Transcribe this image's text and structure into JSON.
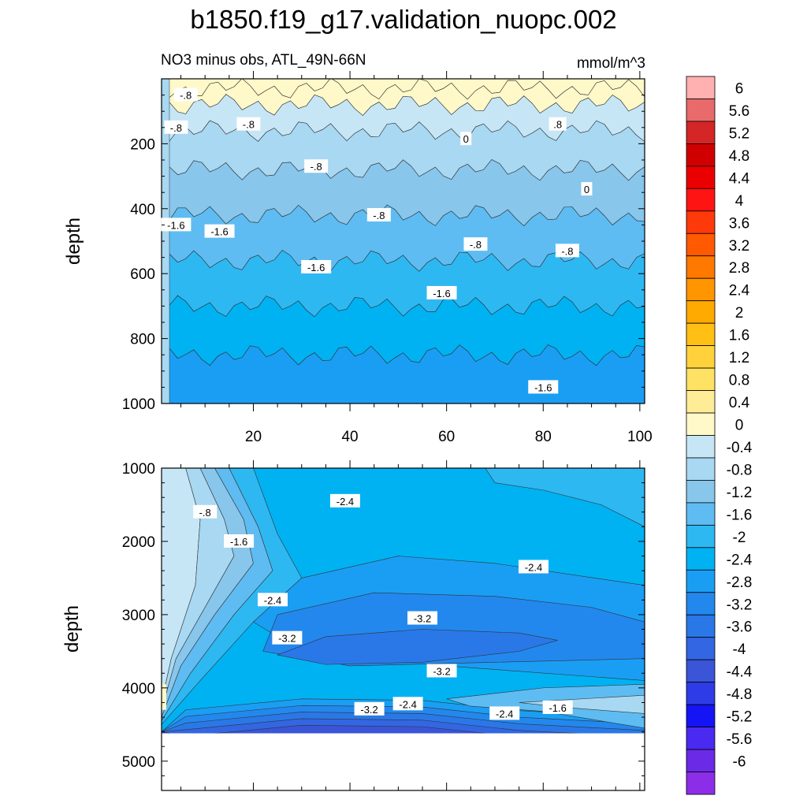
{
  "chart_data": [
    {
      "type": "heatmap",
      "title": "b1850.f19_g17.validation_nuopc.002",
      "subtitle_left": "NO3 minus obs, ATL_49N-66N",
      "units": "mmol/m^3",
      "ylabel": "depth",
      "xlim": [
        1,
        101
      ],
      "ylim": [
        0,
        1000
      ],
      "x_ticks": [
        20,
        40,
        60,
        80,
        100
      ],
      "y_ticks": [
        200,
        400,
        600,
        800,
        1000
      ],
      "bands": [
        {
          "depth": 30,
          "value": 0.4,
          "contour_label": ".8"
        },
        {
          "depth": 80,
          "value": 0.2,
          "contour_label": "0"
        },
        {
          "depth": 160,
          "value": -0.2,
          "contour_label": "-.8"
        },
        {
          "depth": 280,
          "value": -0.6,
          "contour_label": "-.8"
        },
        {
          "depth": 420,
          "value": -1.0,
          "contour_label": "-.8"
        },
        {
          "depth": 560,
          "value": -1.4,
          "contour_label": "-1.6"
        },
        {
          "depth": 700,
          "value": -1.8,
          "contour_label": "-1.6"
        },
        {
          "depth": 850,
          "value": -2.2,
          "contour_label": "-1.6"
        },
        {
          "depth": 1000,
          "value": -2.4,
          "contour_label": ""
        }
      ],
      "contour_labels": [
        {
          "text": "-.8",
          "x": 6,
          "depth": 50
        },
        {
          "text": "-.8",
          "x": 4,
          "depth": 150
        },
        {
          "text": "-.8",
          "x": 19,
          "depth": 140
        },
        {
          "text": ".8",
          "x": 83,
          "depth": 140
        },
        {
          "text": "0",
          "x": 64,
          "depth": 185
        },
        {
          "text": "-.8",
          "x": 33,
          "depth": 270
        },
        {
          "text": "0",
          "x": 89,
          "depth": 340
        },
        {
          "text": "-1.6",
          "x": 4,
          "depth": 450
        },
        {
          "text": "-1.6",
          "x": 13,
          "depth": 470
        },
        {
          "text": "-.8",
          "x": 46,
          "depth": 420
        },
        {
          "text": "-.8",
          "x": 66,
          "depth": 510
        },
        {
          "text": "-.8",
          "x": 85,
          "depth": 530
        },
        {
          "text": "-1.6",
          "x": 33,
          "depth": 580
        },
        {
          "text": "-1.6",
          "x": 59,
          "depth": 660
        },
        {
          "text": "-1.6",
          "x": 80,
          "depth": 950
        }
      ]
    },
    {
      "type": "heatmap",
      "ylabel": "depth",
      "xlim": [
        1,
        101
      ],
      "ylim": [
        1000,
        5400
      ],
      "y_ticks": [
        1000,
        2000,
        3000,
        4000,
        5000
      ],
      "data_bottom": 4620,
      "contour_labels": [
        {
          "text": "-.8",
          "x": 10,
          "depth": 1600
        },
        {
          "text": "-1.6",
          "x": 17,
          "depth": 2000
        },
        {
          "text": "-2.4",
          "x": 39,
          "depth": 1450
        },
        {
          "text": "-2.4",
          "x": 78,
          "depth": 2350
        },
        {
          "text": "-2.4",
          "x": 24,
          "depth": 2800
        },
        {
          "text": "-3.2",
          "x": 55,
          "depth": 3050
        },
        {
          "text": "-3.2",
          "x": 27,
          "depth": 3320
        },
        {
          "text": "-3.2",
          "x": 59,
          "depth": 3770
        },
        {
          "text": "-3.2",
          "x": 44,
          "depth": 4290
        },
        {
          "text": "-2.4",
          "x": 52,
          "depth": 4220
        },
        {
          "text": "-2.4",
          "x": 72,
          "depth": 4350
        },
        {
          "text": "-1.6",
          "x": 83,
          "depth": 4270
        }
      ]
    }
  ],
  "colorbar": {
    "labels": [
      "6",
      "5.6",
      "5.2",
      "4.8",
      "4.4",
      "4",
      "3.6",
      "3.2",
      "2.8",
      "2.4",
      "2",
      "1.6",
      "1.2",
      "0.8",
      "0.4",
      "0",
      "-0.4",
      "-0.8",
      "-1.2",
      "-1.6",
      "-2",
      "-2.4",
      "-2.8",
      "-3.2",
      "-3.6",
      "-4",
      "-4.4",
      "-4.8",
      "-5.2",
      "-5.6",
      "-6"
    ],
    "colors": [
      "#FFB0B0",
      "#E86A6A",
      "#D42626",
      "#D00000",
      "#EA0000",
      "#FF1414",
      "#FF3A0A",
      "#FF5A00",
      "#FF7800",
      "#FF9500",
      "#FFAA00",
      "#FFBF14",
      "#FFD23C",
      "#FFE164",
      "#FFEC96",
      "#FFF8C8",
      "#C6E6F6",
      "#A8D8F2",
      "#88C6EC",
      "#5EBCF2",
      "#2EB8F2",
      "#00B2F2",
      "#1A9EF4",
      "#2288EE",
      "#2A78E8",
      "#3366E2",
      "#3A55D8",
      "#2E3CE8",
      "#1414F4",
      "#4A2AF0",
      "#6A2AE6",
      "#8C2EE8"
    ]
  }
}
